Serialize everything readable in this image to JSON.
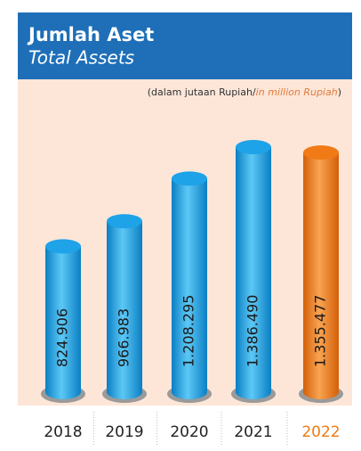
{
  "chart_data": {
    "type": "bar",
    "title": "Jumlah Aset",
    "subtitle": "Total Assets",
    "unit_note": {
      "text": "(dalam jutaan Rupiah/",
      "italic": "in million Rupiah",
      "close": ")"
    },
    "categories": [
      "2018",
      "2019",
      "2020",
      "2021",
      "2022"
    ],
    "values": [
      824906,
      966983,
      1208295,
      1386490,
      1355477
    ],
    "value_labels": [
      "824.906",
      "966.983",
      "1.208.295",
      "1.386.490",
      "1.355.477"
    ],
    "colors": [
      "#1ea2e8",
      "#1ea2e8",
      "#1ea2e8",
      "#1ea2e8",
      "#f07a16"
    ],
    "label_colors": [
      "#222222",
      "#222222",
      "#222222",
      "#222222",
      "#f07a16"
    ]
  }
}
